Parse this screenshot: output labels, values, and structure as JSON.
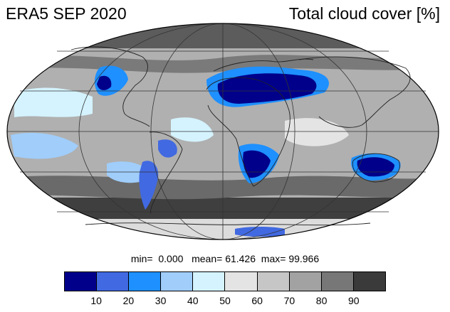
{
  "title_left": "ERA5 SEP 2020",
  "title_right": "Total cloud cover [%]",
  "stats": {
    "min_label": "min=",
    "min_value": "0.000",
    "mean_label": "mean=",
    "mean_value": "61.426",
    "max_label": "max=",
    "max_value": "99.966"
  },
  "colorbar": {
    "colors": [
      "#00008b",
      "#4169e1",
      "#1e90ff",
      "#a0cdfa",
      "#d4f3ff",
      "#e4e4e4",
      "#c6c6c6",
      "#a2a2a2",
      "#777777",
      "#3a3a3a"
    ],
    "tick_labels": [
      "10",
      "20",
      "30",
      "40",
      "50",
      "60",
      "70",
      "80",
      "90"
    ]
  },
  "map": {
    "projection": "Mollweide",
    "ocean_fill": "#9a9a9a"
  }
}
